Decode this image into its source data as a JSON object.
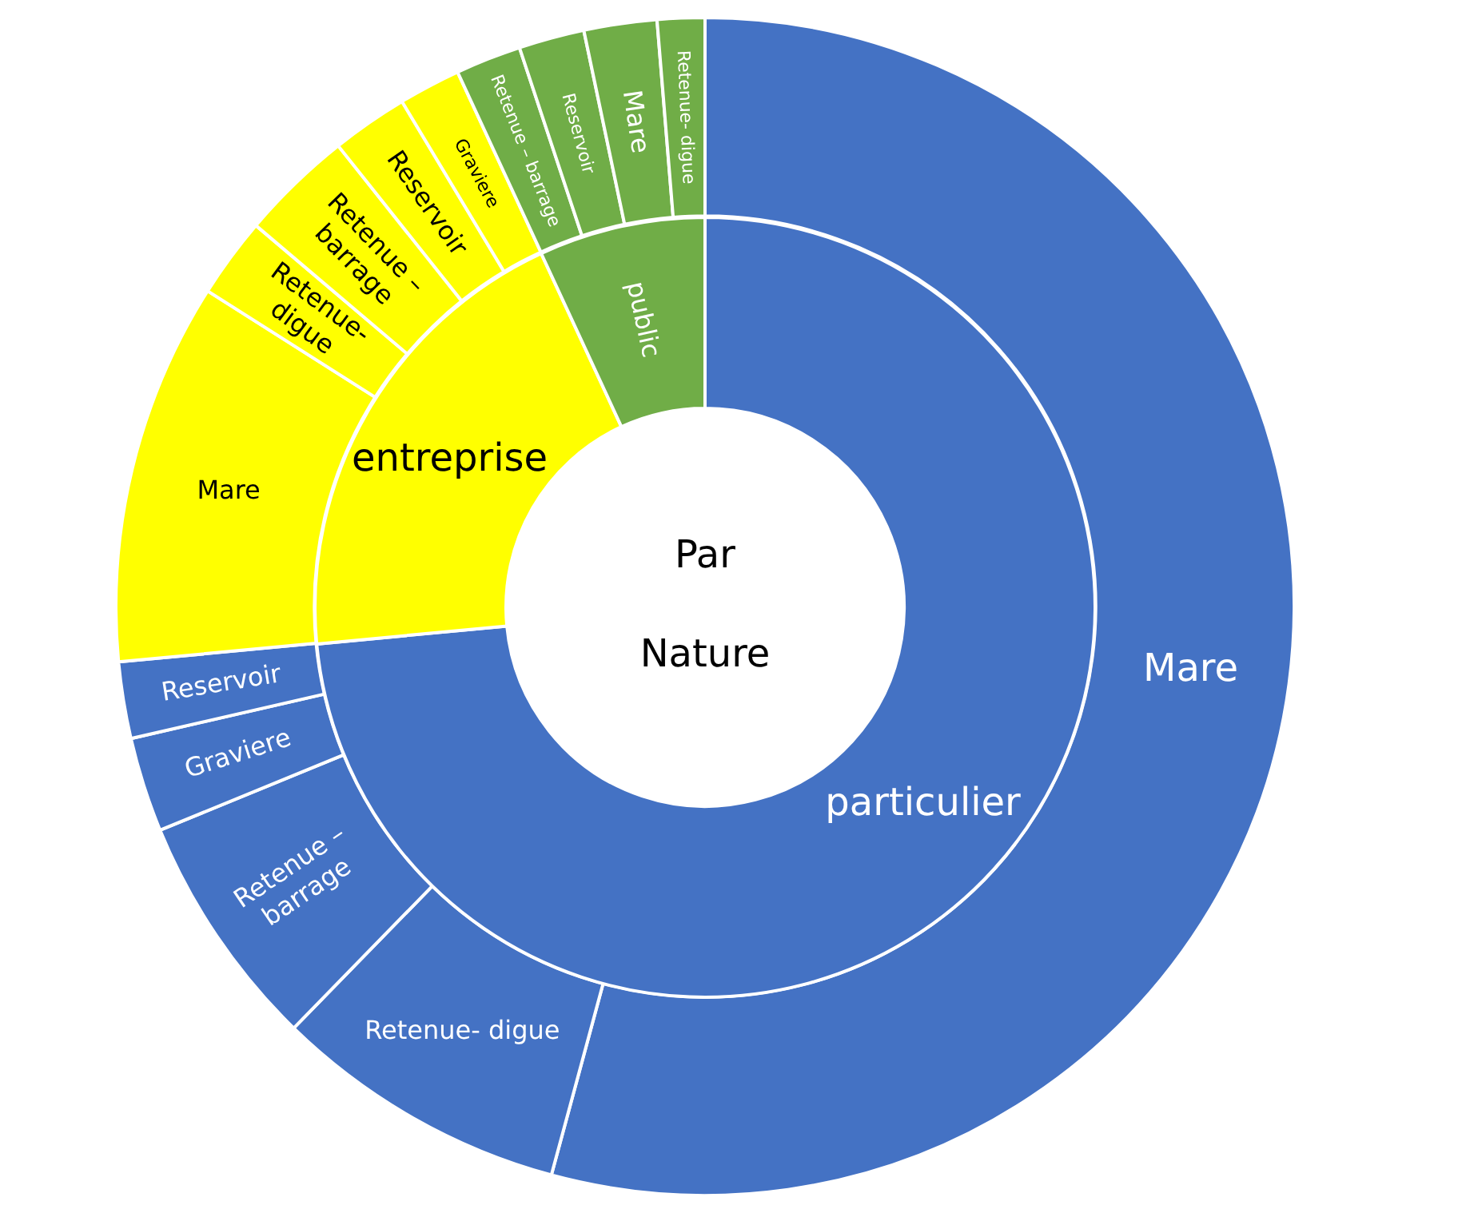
{
  "chart_data": [
    {
      "type": "donut",
      "title": "Par Nature",
      "categories": [
        "particulier",
        "entreprise",
        "public"
      ],
      "values": [
        73.5,
        19.6,
        6.9
      ],
      "colors": [
        "#4472c4",
        "#ffff00",
        "#70ad47"
      ],
      "legend": false
    },
    {
      "type": "donut",
      "categories": [
        "Mare",
        "Retenue- digue",
        "Retenue – barrage",
        "Graviere",
        "Reservoir",
        "Mare",
        "Retenue- digue",
        "Retenue – barrage",
        "Reservoir",
        "Graviere",
        "Retenue – barrage",
        "Reservoir",
        "Mare",
        "Retenue- digue"
      ],
      "values": [
        54.2,
        8.1,
        6.5,
        2.6,
        2.1,
        10.5,
        2.2,
        3.1,
        2.1,
        1.7,
        1.8,
        1.8,
        2.0,
        1.3
      ],
      "colors": [
        "#4472c4",
        "#4472c4",
        "#4472c4",
        "#4472c4",
        "#4472c4",
        "#ffff00",
        "#ffff00",
        "#ffff00",
        "#ffff00",
        "#ffff00",
        "#70ad47",
        "#70ad47",
        "#70ad47",
        "#70ad47"
      ],
      "legend": false
    }
  ]
}
